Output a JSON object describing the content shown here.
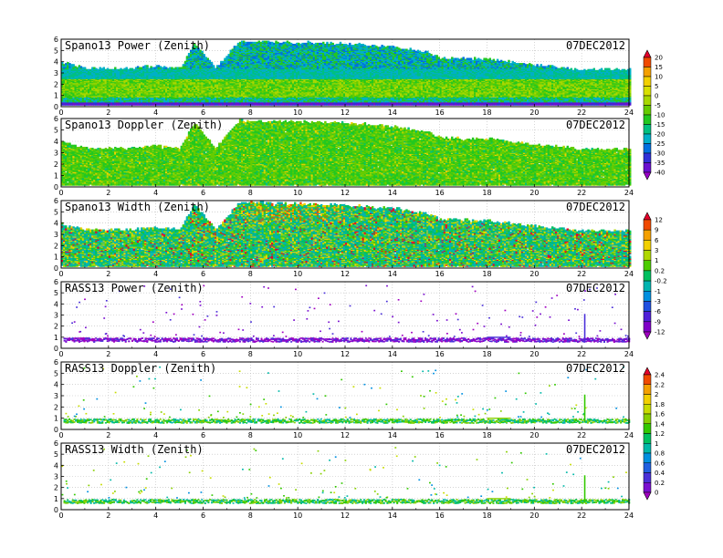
{
  "chart_data": [
    {
      "type": "heatmap",
      "title": "Spano13 Power (Zenith)",
      "date": "07DEC2012",
      "x_range": [
        0,
        24
      ],
      "y_range": [
        0,
        6
      ],
      "x_ticks": [
        "0",
        "2",
        "4",
        "6",
        "8",
        "10",
        "12",
        "14",
        "16",
        "18",
        "20",
        "22",
        "24"
      ],
      "y_ticks": [
        "0",
        "1",
        "2",
        "3",
        "4",
        "5",
        "6"
      ],
      "profile": {
        "x": [
          0,
          1,
          2,
          3,
          4,
          5,
          5.6,
          6.5,
          7.5,
          12,
          14,
          15.5,
          16,
          18,
          20,
          22,
          24
        ],
        "top": [
          3.8,
          3.3,
          3.3,
          3.3,
          3.5,
          3.3,
          5.5,
          3.3,
          5.7,
          5.5,
          5.2,
          4.7,
          4.2,
          4.1,
          3.6,
          3.2,
          3.2
        ]
      },
      "colorbar": "power",
      "mode": "power"
    },
    {
      "type": "heatmap",
      "title": "Spano13 Doppler (Zenith)",
      "date": "07DEC2012",
      "x_range": [
        0,
        24
      ],
      "y_range": [
        0,
        6
      ],
      "x_ticks": [
        "0",
        "2",
        "4",
        "6",
        "8",
        "10",
        "12",
        "14",
        "16",
        "18",
        "20",
        "22",
        "24"
      ],
      "y_ticks": [
        "0",
        "1",
        "2",
        "3",
        "4",
        "5",
        "6"
      ],
      "profile": {
        "x": [
          0,
          1,
          2,
          3,
          4,
          5,
          5.6,
          6.5,
          7.5,
          12,
          14,
          15.5,
          16,
          18,
          20,
          22,
          24
        ],
        "top": [
          3.8,
          3.3,
          3.3,
          3.3,
          3.5,
          3.3,
          5.5,
          3.3,
          5.7,
          5.5,
          5.2,
          4.7,
          4.2,
          4.1,
          3.6,
          3.2,
          3.2
        ]
      },
      "colorbar": "power",
      "mode": "doppler"
    },
    {
      "type": "heatmap",
      "title": "Spano13 Width (Zenith)",
      "date": "07DEC2012",
      "x_range": [
        0,
        24
      ],
      "y_range": [
        0,
        6
      ],
      "x_ticks": [
        "0",
        "2",
        "4",
        "6",
        "8",
        "10",
        "12",
        "14",
        "16",
        "18",
        "20",
        "22",
        "24"
      ],
      "y_ticks": [
        "0",
        "1",
        "2",
        "3",
        "4",
        "5",
        "6"
      ],
      "profile": {
        "x": [
          0,
          1,
          2,
          3,
          4,
          5,
          5.6,
          6.5,
          7.5,
          12,
          14,
          15.5,
          16,
          18,
          20,
          22,
          24
        ],
        "top": [
          3.8,
          3.3,
          3.3,
          3.3,
          3.5,
          3.3,
          5.5,
          3.3,
          5.7,
          5.5,
          5.2,
          4.7,
          4.2,
          4.1,
          3.6,
          3.2,
          3.2
        ]
      },
      "colorbar": "width",
      "mode": "width"
    },
    {
      "type": "heatmap",
      "title": "RASS13 Power (Zenith)",
      "date": "07DEC2012",
      "x_range": [
        0,
        24
      ],
      "y_range": [
        0,
        6
      ],
      "x_ticks": [
        "0",
        "2",
        "4",
        "6",
        "8",
        "10",
        "12",
        "14",
        "16",
        "18",
        "20",
        "22",
        "24"
      ],
      "y_ticks": [
        "0",
        "1",
        "2",
        "3",
        "4",
        "5",
        "6"
      ],
      "band": [
        0.5,
        1.0
      ],
      "spike_x": 22.1,
      "colorbar": "width",
      "mode": "rass_power"
    },
    {
      "type": "heatmap",
      "title": "RASS13 Doppler (Zenith)",
      "date": "07DEC2012",
      "x_range": [
        0,
        24
      ],
      "y_range": [
        0,
        6
      ],
      "x_ticks": [
        "0",
        "2",
        "4",
        "6",
        "8",
        "10",
        "12",
        "14",
        "16",
        "18",
        "20",
        "22",
        "24"
      ],
      "y_ticks": [
        "0",
        "1",
        "2",
        "3",
        "4",
        "5",
        "6"
      ],
      "band": [
        0.5,
        1.0
      ],
      "spike_x": 22.1,
      "colorbar": "rass",
      "mode": "rass_doppler"
    },
    {
      "type": "heatmap",
      "title": "RASS13 Width (Zenith)",
      "date": "07DEC2012",
      "x_range": [
        0,
        24
      ],
      "y_range": [
        0,
        6
      ],
      "x_ticks": [
        "0",
        "2",
        "4",
        "6",
        "8",
        "10",
        "12",
        "14",
        "16",
        "18",
        "20",
        "22",
        "24"
      ],
      "y_ticks": [
        "0",
        "1",
        "2",
        "3",
        "4",
        "5",
        "6"
      ],
      "band": [
        0.5,
        1.0
      ],
      "spike_x": 22.1,
      "colorbar": "rass",
      "mode": "rass_width"
    }
  ],
  "colorbars": {
    "power": {
      "labels": [
        "20",
        "15",
        "10",
        "5",
        "0",
        "-5",
        "-10",
        "-15",
        "-20",
        "-25",
        "-30",
        "-35",
        "-40"
      ],
      "colors": [
        "#e6002a",
        "#f04a00",
        "#f4a000",
        "#f2d000",
        "#d8e000",
        "#a8d800",
        "#66cc00",
        "#22c820",
        "#00c080",
        "#00b0c8",
        "#0070e0",
        "#3030d8",
        "#6a10d0",
        "#9a00c8"
      ]
    },
    "width": {
      "labels": [
        "12",
        "9",
        "6",
        "3",
        "1",
        "0.2",
        "-0.2",
        "-1",
        "-3",
        "-6",
        "-9",
        "-12"
      ],
      "colors": [
        "#e6002a",
        "#f04a00",
        "#f4a000",
        "#f2d000",
        "#b0d800",
        "#4ccc00",
        "#00c060",
        "#00b4b0",
        "#0090e0",
        "#2050e0",
        "#5020d8",
        "#8000c8",
        "#a000c0"
      ]
    },
    "rass": {
      "labels": [
        "2.4",
        "2.2",
        "2",
        "1.8",
        "1.6",
        "1.4",
        "1.2",
        "1",
        "0.8",
        "0.6",
        "0.4",
        "0.2",
        "0"
      ],
      "colors": [
        "#e6002a",
        "#f04a00",
        "#f4a000",
        "#f2d000",
        "#c8dc00",
        "#88d000",
        "#33c800",
        "#00c060",
        "#00b8a8",
        "#0090e0",
        "#2060e0",
        "#4a30d8",
        "#7a10d0",
        "#a000c0"
      ]
    }
  }
}
